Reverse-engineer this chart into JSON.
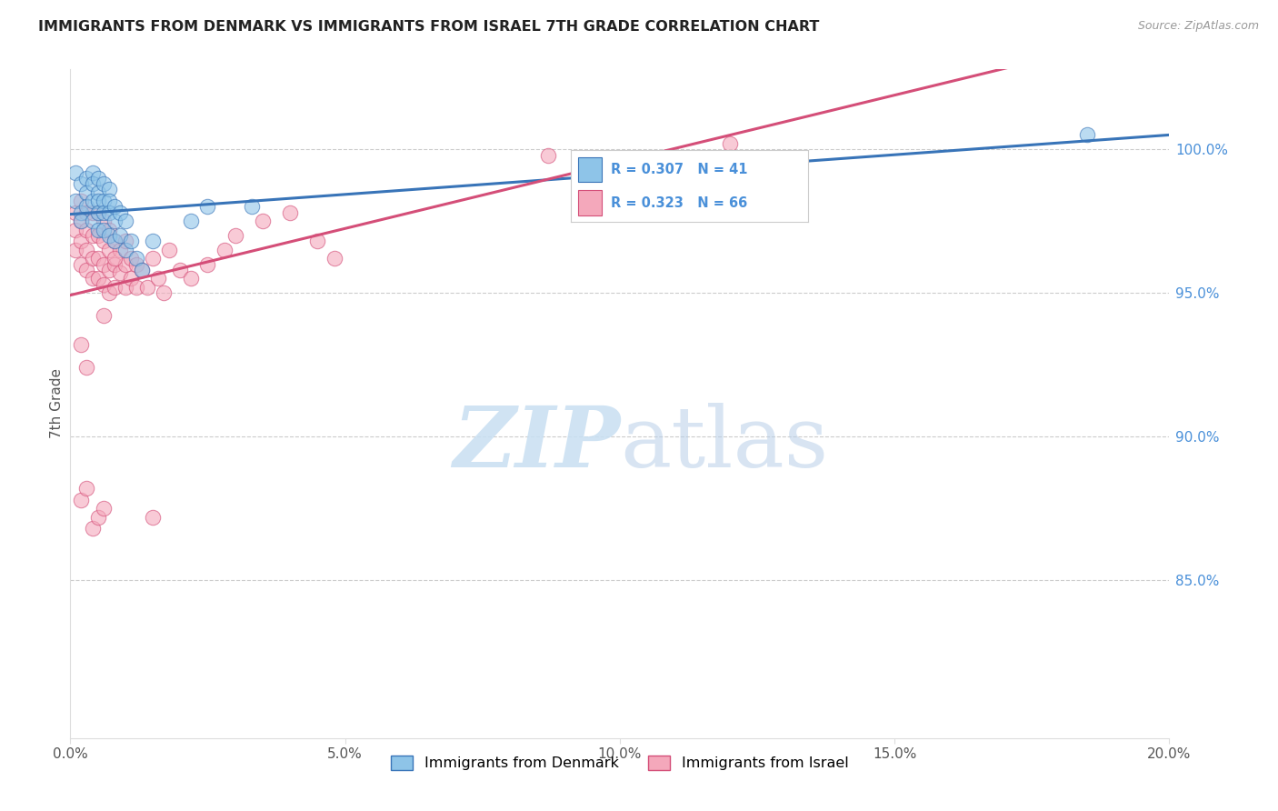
{
  "title": "IMMIGRANTS FROM DENMARK VS IMMIGRANTS FROM ISRAEL 7TH GRADE CORRELATION CHART",
  "source": "Source: ZipAtlas.com",
  "ylabel": "7th Grade",
  "right_yticks": [
    "100.0%",
    "95.0%",
    "90.0%",
    "85.0%"
  ],
  "right_ytick_vals": [
    1.0,
    0.95,
    0.9,
    0.85
  ],
  "watermark_zip": "ZIP",
  "watermark_atlas": "atlas",
  "legend_denmark": "Immigrants from Denmark",
  "legend_israel": "Immigrants from Israel",
  "R_denmark": 0.307,
  "N_denmark": 41,
  "R_israel": 0.323,
  "N_israel": 66,
  "color_denmark": "#8ec4e8",
  "color_israel": "#f4a8bb",
  "color_line_denmark": "#3874b8",
  "color_line_israel": "#d44e78",
  "xlim": [
    0.0,
    0.2
  ],
  "ylim": [
    0.795,
    1.028
  ],
  "xticks": [
    0.0,
    0.05,
    0.1,
    0.15,
    0.2
  ],
  "xticklabels": [
    "0.0%",
    "5.0%",
    "10.0%",
    "15.0%",
    "20.0%"
  ],
  "denmark_x": [
    0.001,
    0.001,
    0.002,
    0.002,
    0.002,
    0.003,
    0.003,
    0.003,
    0.004,
    0.004,
    0.004,
    0.004,
    0.005,
    0.005,
    0.005,
    0.005,
    0.005,
    0.006,
    0.006,
    0.006,
    0.006,
    0.007,
    0.007,
    0.007,
    0.007,
    0.008,
    0.008,
    0.008,
    0.009,
    0.009,
    0.01,
    0.01,
    0.011,
    0.012,
    0.013,
    0.015,
    0.022,
    0.025,
    0.033,
    0.095,
    0.185
  ],
  "denmark_y": [
    0.982,
    0.992,
    0.988,
    0.978,
    0.975,
    0.99,
    0.985,
    0.98,
    0.992,
    0.988,
    0.982,
    0.975,
    0.99,
    0.985,
    0.982,
    0.978,
    0.972,
    0.988,
    0.982,
    0.978,
    0.972,
    0.986,
    0.982,
    0.978,
    0.97,
    0.98,
    0.975,
    0.968,
    0.978,
    0.97,
    0.975,
    0.965,
    0.968,
    0.962,
    0.958,
    0.968,
    0.975,
    0.98,
    0.98,
    0.997,
    1.005
  ],
  "israel_x": [
    0.001,
    0.001,
    0.001,
    0.002,
    0.002,
    0.002,
    0.002,
    0.003,
    0.003,
    0.003,
    0.003,
    0.004,
    0.004,
    0.004,
    0.004,
    0.005,
    0.005,
    0.005,
    0.005,
    0.006,
    0.006,
    0.006,
    0.006,
    0.007,
    0.007,
    0.007,
    0.007,
    0.008,
    0.008,
    0.008,
    0.009,
    0.009,
    0.01,
    0.01,
    0.01,
    0.011,
    0.011,
    0.012,
    0.012,
    0.013,
    0.014,
    0.015,
    0.016,
    0.017,
    0.018,
    0.02,
    0.022,
    0.025,
    0.028,
    0.03,
    0.035,
    0.04,
    0.045,
    0.048,
    0.002,
    0.003,
    0.004,
    0.005,
    0.006,
    0.087,
    0.12,
    0.002,
    0.003,
    0.015,
    0.008,
    0.006
  ],
  "israel_y": [
    0.978,
    0.972,
    0.965,
    0.982,
    0.975,
    0.968,
    0.96,
    0.978,
    0.972,
    0.965,
    0.958,
    0.978,
    0.97,
    0.962,
    0.955,
    0.978,
    0.97,
    0.962,
    0.955,
    0.975,
    0.968,
    0.96,
    0.953,
    0.972,
    0.965,
    0.958,
    0.95,
    0.968,
    0.96,
    0.952,
    0.965,
    0.957,
    0.968,
    0.96,
    0.952,
    0.962,
    0.955,
    0.96,
    0.952,
    0.958,
    0.952,
    0.962,
    0.955,
    0.95,
    0.965,
    0.958,
    0.955,
    0.96,
    0.965,
    0.97,
    0.975,
    0.978,
    0.968,
    0.962,
    0.932,
    0.924,
    0.868,
    0.872,
    0.875,
    0.998,
    1.002,
    0.878,
    0.882,
    0.872,
    0.962,
    0.942
  ]
}
